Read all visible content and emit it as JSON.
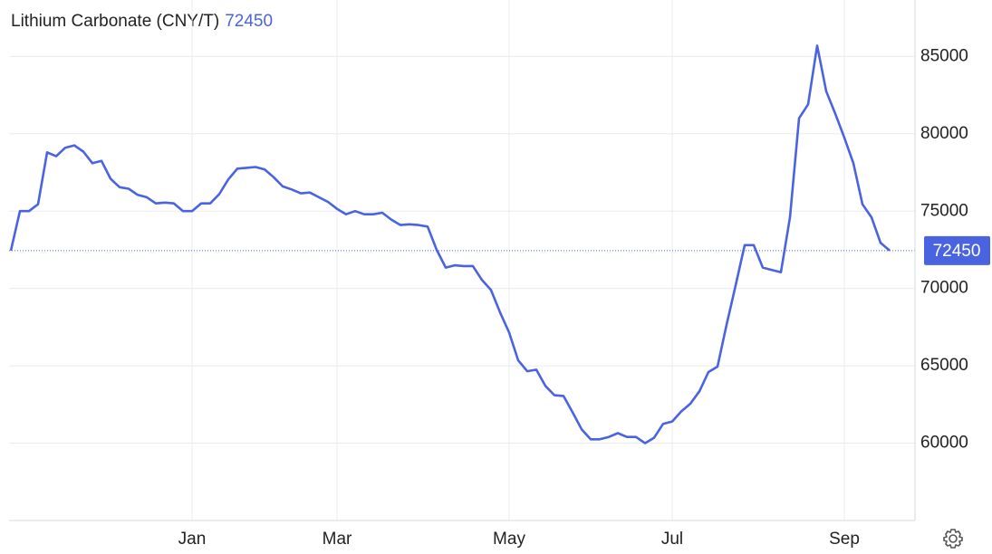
{
  "chart_data": {
    "type": "line",
    "title": "Lithium Carbonate (CNY/T)",
    "categories": [
      null,
      null,
      null,
      null,
      null,
      null,
      null,
      null,
      null,
      null,
      null,
      null,
      null,
      null,
      null,
      null,
      null,
      null,
      null,
      null,
      "Jan",
      null,
      null,
      null,
      null,
      null,
      null,
      null,
      null,
      null,
      null,
      null,
      null,
      null,
      null,
      null,
      "Mar",
      null,
      null,
      null,
      null,
      null,
      null,
      null,
      null,
      null,
      null,
      null,
      null,
      null,
      null,
      null,
      null,
      null,
      null,
      "May",
      null,
      null,
      null,
      null,
      null,
      null,
      null,
      null,
      null,
      null,
      null,
      null,
      null,
      null,
      null,
      null,
      null,
      "Jul",
      null,
      null,
      null,
      null,
      null,
      null,
      null,
      null,
      null,
      null,
      null,
      null,
      null,
      null,
      null,
      null,
      null,
      null,
      "Sep",
      null,
      null,
      null,
      null,
      null
    ],
    "values": [
      72450,
      75000,
      75000,
      75450,
      78800,
      78550,
      79100,
      79250,
      78850,
      78100,
      78250,
      77100,
      76550,
      76450,
      76050,
      75900,
      75500,
      75550,
      75500,
      75000,
      75000,
      75500,
      75500,
      76100,
      77050,
      77750,
      77800,
      77850,
      77700,
      77200,
      76600,
      76400,
      76150,
      76200,
      75900,
      75600,
      75150,
      74800,
      75000,
      74800,
      74800,
      74900,
      74450,
      74100,
      74150,
      74100,
      74000,
      72500,
      71350,
      71500,
      71450,
      71450,
      70550,
      69900,
      68450,
      67150,
      65350,
      64650,
      64750,
      63700,
      63100,
      63050,
      62000,
      60900,
      60250,
      60250,
      60400,
      60650,
      60400,
      60400,
      60000,
      60350,
      61250,
      61400,
      62050,
      62550,
      63350,
      64600,
      64950,
      67650,
      70200,
      72800,
      72800,
      71350,
      71200,
      71050,
      74600,
      81000,
      81900,
      85700,
      82750,
      81300,
      79750,
      78100,
      75450,
      74600,
      72950,
      72450
    ],
    "color": "#4a63e0",
    "ylim": [
      55000,
      88650
    ],
    "yticks": [
      60000,
      65000,
      70000,
      75000,
      80000,
      85000
    ],
    "grid": true
  }
}
